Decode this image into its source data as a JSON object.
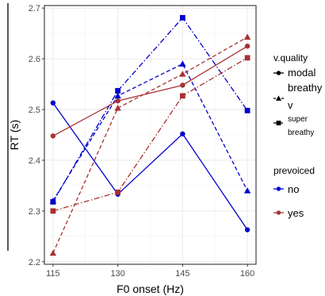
{
  "chart_data": {
    "type": "line",
    "xlabel": "F0 onset (Hz)",
    "ylabel": "RT (s)",
    "x": [
      115,
      130,
      145,
      160
    ],
    "xlim": [
      113,
      162
    ],
    "ylim": [
      2.195,
      2.705
    ],
    "yticks": [
      2.2,
      2.3,
      2.4,
      2.5,
      2.6,
      2.7
    ],
    "yticklabels": [
      "2.2",
      "2.3",
      "2.4",
      "2.5",
      "2.6",
      "2.7"
    ],
    "xticklabels": [
      "115",
      "130",
      "145",
      "160"
    ],
    "grid": true,
    "series": [
      {
        "prevoiced": "no",
        "v_quality": "modal",
        "color": "#0000cc",
        "linetype": "solid",
        "marker": "circle",
        "values": [
          2.513,
          2.333,
          2.452,
          2.263
        ]
      },
      {
        "prevoiced": "no",
        "v_quality": "breathy",
        "color": "#0000cc",
        "linetype": "dashed",
        "marker": "triangle",
        "values": [
          2.32,
          2.527,
          2.59,
          2.34
        ]
      },
      {
        "prevoiced": "no",
        "v_quality": "superbreathy",
        "color": "#0000cc",
        "linetype": "dotdash",
        "marker": "square",
        "values": [
          2.318,
          2.537,
          2.681,
          2.498
        ]
      },
      {
        "prevoiced": "yes",
        "v_quality": "modal",
        "color": "#a83232",
        "linetype": "solid",
        "marker": "circle",
        "values": [
          2.448,
          2.517,
          2.548,
          2.625
        ]
      },
      {
        "prevoiced": "yes",
        "v_quality": "breathy",
        "color": "#a83232",
        "linetype": "dashed",
        "marker": "triangle",
        "values": [
          2.217,
          2.503,
          2.57,
          2.643
        ]
      },
      {
        "prevoiced": "yes",
        "v_quality": "superbreathy",
        "color": "#a83232",
        "linetype": "dotdash",
        "marker": "square",
        "values": [
          2.3,
          2.337,
          2.527,
          2.602
        ]
      }
    ],
    "legend": {
      "placement": "right",
      "v_quality": {
        "title": "v.quality",
        "entries": [
          {
            "marker": "circle",
            "linetype": "solid",
            "lines": [
              "modal"
            ],
            "size": "normal"
          },
          {
            "marker": "triangle",
            "linetype": "dashed",
            "lines": [
              "breathy",
              "v"
            ],
            "size": "normal"
          },
          {
            "marker": "square",
            "linetype": "dotdash",
            "lines": [
              "super",
              "breathy"
            ],
            "size": "small"
          }
        ]
      },
      "prevoiced": {
        "title": "prevoiced",
        "entries": [
          {
            "label": "no",
            "color": "#0000cc"
          },
          {
            "label": "yes",
            "color": "#a83232"
          }
        ]
      }
    }
  }
}
